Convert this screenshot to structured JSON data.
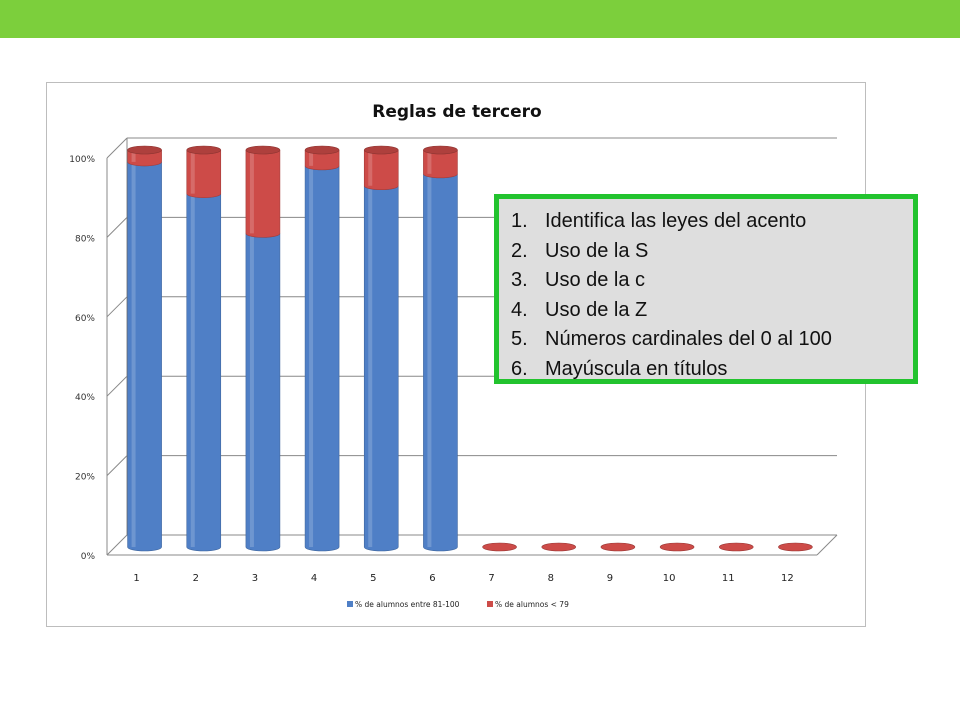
{
  "colors": {
    "top_bar": "#7ccf3c",
    "series_blue": "#4f7fc6",
    "series_red": "#cd4b48",
    "box_border": "#22c32e",
    "box_fill": "#dedede"
  },
  "topic_list": [
    {
      "num": "1.",
      "text": "Identifica las leyes del acento"
    },
    {
      "num": "2.",
      "text": "Uso de la S"
    },
    {
      "num": "3.",
      "text": "Uso de la c"
    },
    {
      "num": "4.",
      "text": "Uso de la Z"
    },
    {
      "num": "5.",
      "text": "Números cardinales del 0 al 100"
    },
    {
      "num": "6.",
      "text": "Mayúscula en títulos"
    }
  ],
  "chart_data": {
    "type": "bar",
    "stacked": true,
    "style": "3d-cylinder",
    "title": "Reglas de tercero",
    "categories": [
      "1",
      "2",
      "3",
      "4",
      "5",
      "6",
      "7",
      "8",
      "9",
      "10",
      "11",
      "12"
    ],
    "series": [
      {
        "name": "% de alumnos entre 81-100",
        "color": "#4f7fc6",
        "values": [
          97,
          89,
          79,
          96,
          91,
          94,
          0,
          0,
          0,
          0,
          0,
          0
        ]
      },
      {
        "name": "% de alumnos < 79",
        "color": "#cd4b48",
        "values": [
          3,
          11,
          21,
          4,
          9,
          6,
          0,
          0,
          0,
          0,
          0,
          0
        ]
      }
    ],
    "yticks": [
      "0%",
      "20%",
      "40%",
      "60%",
      "80%",
      "100%"
    ],
    "ylim": [
      0,
      100
    ],
    "grid": true,
    "legend_position": "bottom"
  }
}
